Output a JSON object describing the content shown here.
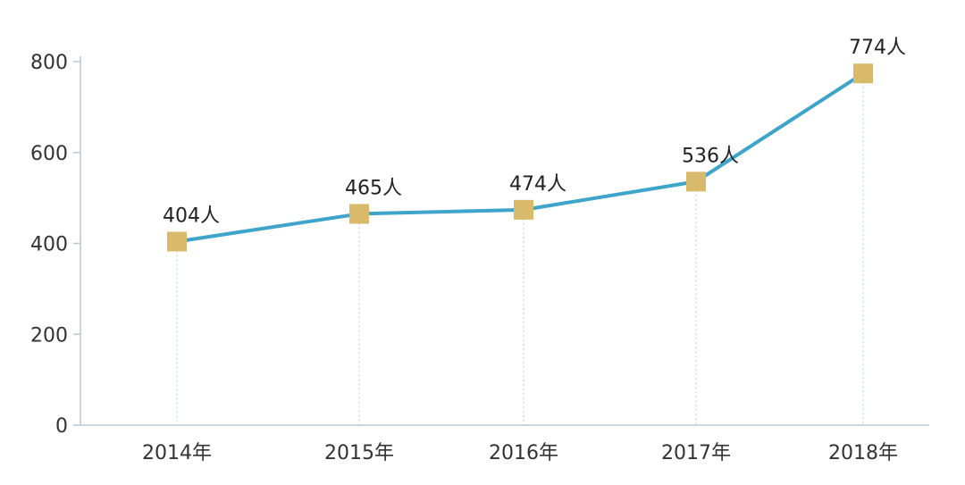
{
  "chart_data": {
    "type": "line",
    "categories": [
      "2014年",
      "2015年",
      "2016年",
      "2017年",
      "2018年"
    ],
    "series": [
      {
        "values": [
          404,
          465,
          474,
          536,
          774
        ],
        "data_labels": [
          "404人",
          "465人",
          "474人",
          "536人",
          "774人"
        ]
      }
    ],
    "y_ticks": [
      "0",
      "200",
      "400",
      "600",
      "800"
    ],
    "ylim": [
      0,
      800
    ],
    "grid": false,
    "title": "",
    "xlabel": "",
    "ylabel": "",
    "colors": {
      "line": "#3fa4c9",
      "marker": "#d9b96a",
      "axis": "#b7c9d6",
      "guide": "#b7c9d6"
    }
  }
}
